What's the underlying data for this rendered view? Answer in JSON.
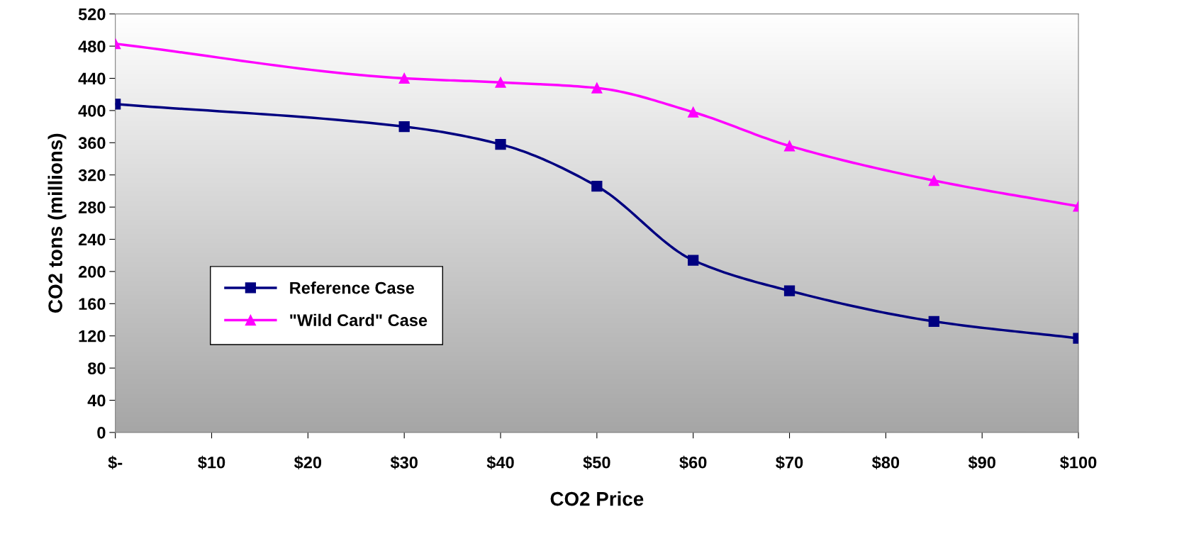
{
  "chart_data": {
    "type": "line",
    "xlabel": "CO2 Price",
    "ylabel": "CO2 tons (millions)",
    "xlim": [
      0,
      100
    ],
    "xticks": [
      {
        "value": 0,
        "label": "$-"
      },
      {
        "value": 10,
        "label": "$10"
      },
      {
        "value": 20,
        "label": "$20"
      },
      {
        "value": 30,
        "label": "$30"
      },
      {
        "value": 40,
        "label": "$40"
      },
      {
        "value": 50,
        "label": "$50"
      },
      {
        "value": 60,
        "label": "$60"
      },
      {
        "value": 70,
        "label": "$70"
      },
      {
        "value": 80,
        "label": "$80"
      },
      {
        "value": 90,
        "label": "$90"
      },
      {
        "value": 100,
        "label": "$100"
      }
    ],
    "ylim": [
      0,
      520
    ],
    "yticks": [
      0,
      40,
      80,
      120,
      160,
      200,
      240,
      280,
      320,
      360,
      400,
      440,
      480,
      520
    ],
    "x": [
      0,
      30,
      40,
      50,
      60,
      70,
      85,
      100
    ],
    "series": [
      {
        "name": "Reference Case",
        "color": "#000080",
        "marker": "square",
        "values": [
          408,
          380,
          358,
          306,
          214,
          176,
          138,
          117
        ]
      },
      {
        "name": "\"Wild Card\" Case",
        "color": "#ff00ff",
        "marker": "triangle",
        "values": [
          483,
          440,
          435,
          428,
          398,
          356,
          313,
          281
        ]
      }
    ],
    "legend": "bottom left",
    "grid": false,
    "line_style": "solid"
  }
}
